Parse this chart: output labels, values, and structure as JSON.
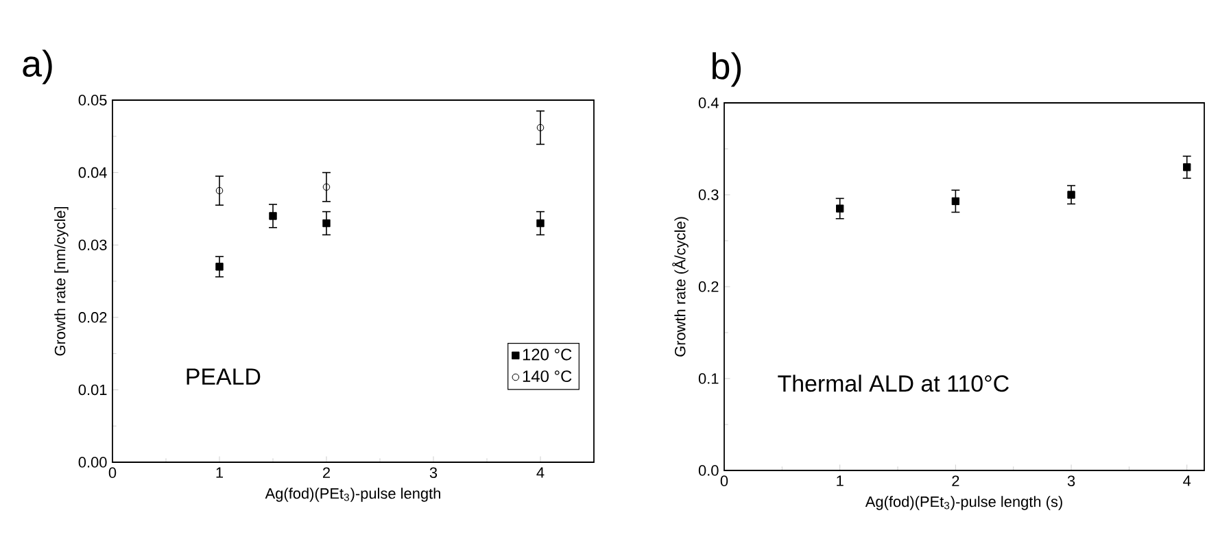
{
  "chart_data": [
    {
      "type": "scatter",
      "title": "a)",
      "xlabel": "Ag(fod)(PEt$_{3}$)-pulse length",
      "ylabel": "Growth rate [nm/cycle]",
      "xlim": [
        0,
        4.5
      ],
      "ylim": [
        0,
        0.05
      ],
      "xticks": [
        0,
        1,
        2,
        3,
        4
      ],
      "yticks": [
        {
          "value": 0,
          "label": "0.00"
        },
        {
          "value": 0.01,
          "label": "0.01"
        },
        {
          "value": 0.02,
          "label": "0.02"
        },
        {
          "value": 0.03,
          "label": "0.03"
        },
        {
          "value": 0.04,
          "label": "0.04"
        },
        {
          "value": 0.05,
          "label": "0.05"
        }
      ],
      "legend": "bottom right",
      "grid": false,
      "annotations": [
        "PEALD"
      ],
      "series": [
        {
          "name": "120 °C",
          "color": "#000000",
          "marker": "square",
          "x": [
            1,
            1.5,
            2,
            4
          ],
          "values": [
            0.027,
            0.034,
            0.033,
            0.033
          ],
          "errors": [
            0.0014,
            0.0016,
            0.0016,
            0.0016
          ]
        },
        {
          "name": "140 °C",
          "color": "#000000",
          "marker": "circle",
          "x": [
            1,
            2,
            4
          ],
          "values": [
            0.0375,
            0.038,
            0.0462
          ],
          "errors": [
            0.002,
            0.002,
            0.0023
          ]
        }
      ]
    },
    {
      "type": "scatter",
      "title": "b)",
      "xlabel": "Ag(fod)(PEt$_{3}$)-pulse length (s)",
      "ylabel": "Growth rate (Å/cycle)",
      "xlim": [
        0,
        4.15
      ],
      "ylim": [
        0,
        0.4
      ],
      "xticks": [
        0,
        1,
        2,
        3,
        4
      ],
      "yticks": [
        {
          "value": 0,
          "label": "0.0"
        },
        {
          "value": 0.1,
          "label": "0.1"
        },
        {
          "value": 0.2,
          "label": "0.2"
        },
        {
          "value": 0.3,
          "label": "0.3"
        },
        {
          "value": 0.4,
          "label": "0.4"
        }
      ],
      "grid": false,
      "annotations": [
        "Thermal ALD at 110°C"
      ],
      "series": [
        {
          "color": "#000000",
          "marker": "square",
          "x": [
            1,
            2,
            3,
            4
          ],
          "values": [
            0.285,
            0.293,
            0.3,
            0.33
          ],
          "errors": [
            0.011,
            0.012,
            0.01,
            0.012
          ]
        }
      ]
    }
  ]
}
